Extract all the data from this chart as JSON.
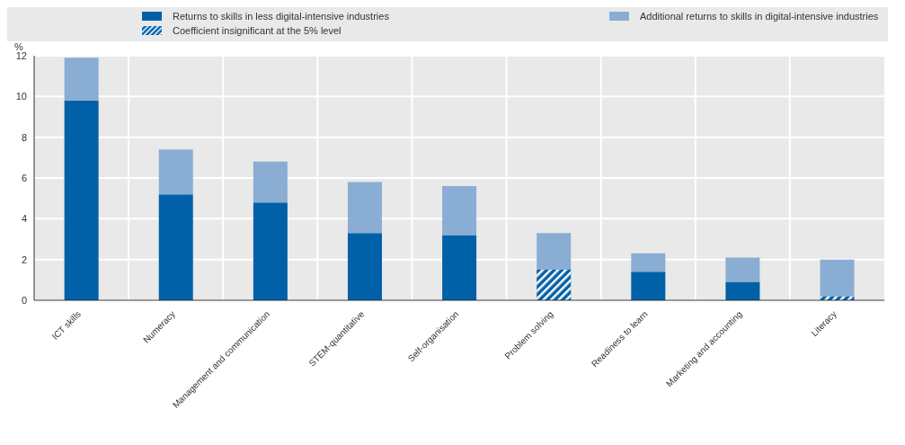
{
  "chart_data": {
    "type": "bar",
    "stacked": true,
    "ylabel": "%",
    "categories": [
      "ICT skills",
      "Numeracy",
      "Management and communication",
      "STEM-quantitative",
      "Self-organisation",
      "Problem solving",
      "Readiness to learn",
      "Marketing and accounting",
      "Literacy"
    ],
    "series": [
      {
        "name": "Returns to skills in less digital-intensive industries",
        "color": "#0060a8",
        "values": [
          9.8,
          5.2,
          4.8,
          3.3,
          3.2,
          null,
          1.4,
          0.9,
          null
        ]
      },
      {
        "name": "Coefficient insignificant at the 5% level",
        "color": "#0060a8",
        "values": [
          null,
          null,
          null,
          null,
          null,
          1.5,
          null,
          null,
          0.2
        ]
      },
      {
        "name": "Additional returns to skills in digital-intensive industries",
        "color": "#8aadd4",
        "values": [
          2.1,
          2.2,
          2.0,
          2.5,
          2.4,
          1.8,
          0.9,
          1.2,
          1.8
        ]
      }
    ],
    "ylim": [
      0,
      12
    ],
    "yticks": [
      0,
      2,
      4,
      6,
      8,
      10,
      12
    ],
    "grid": true,
    "legend": "top"
  }
}
